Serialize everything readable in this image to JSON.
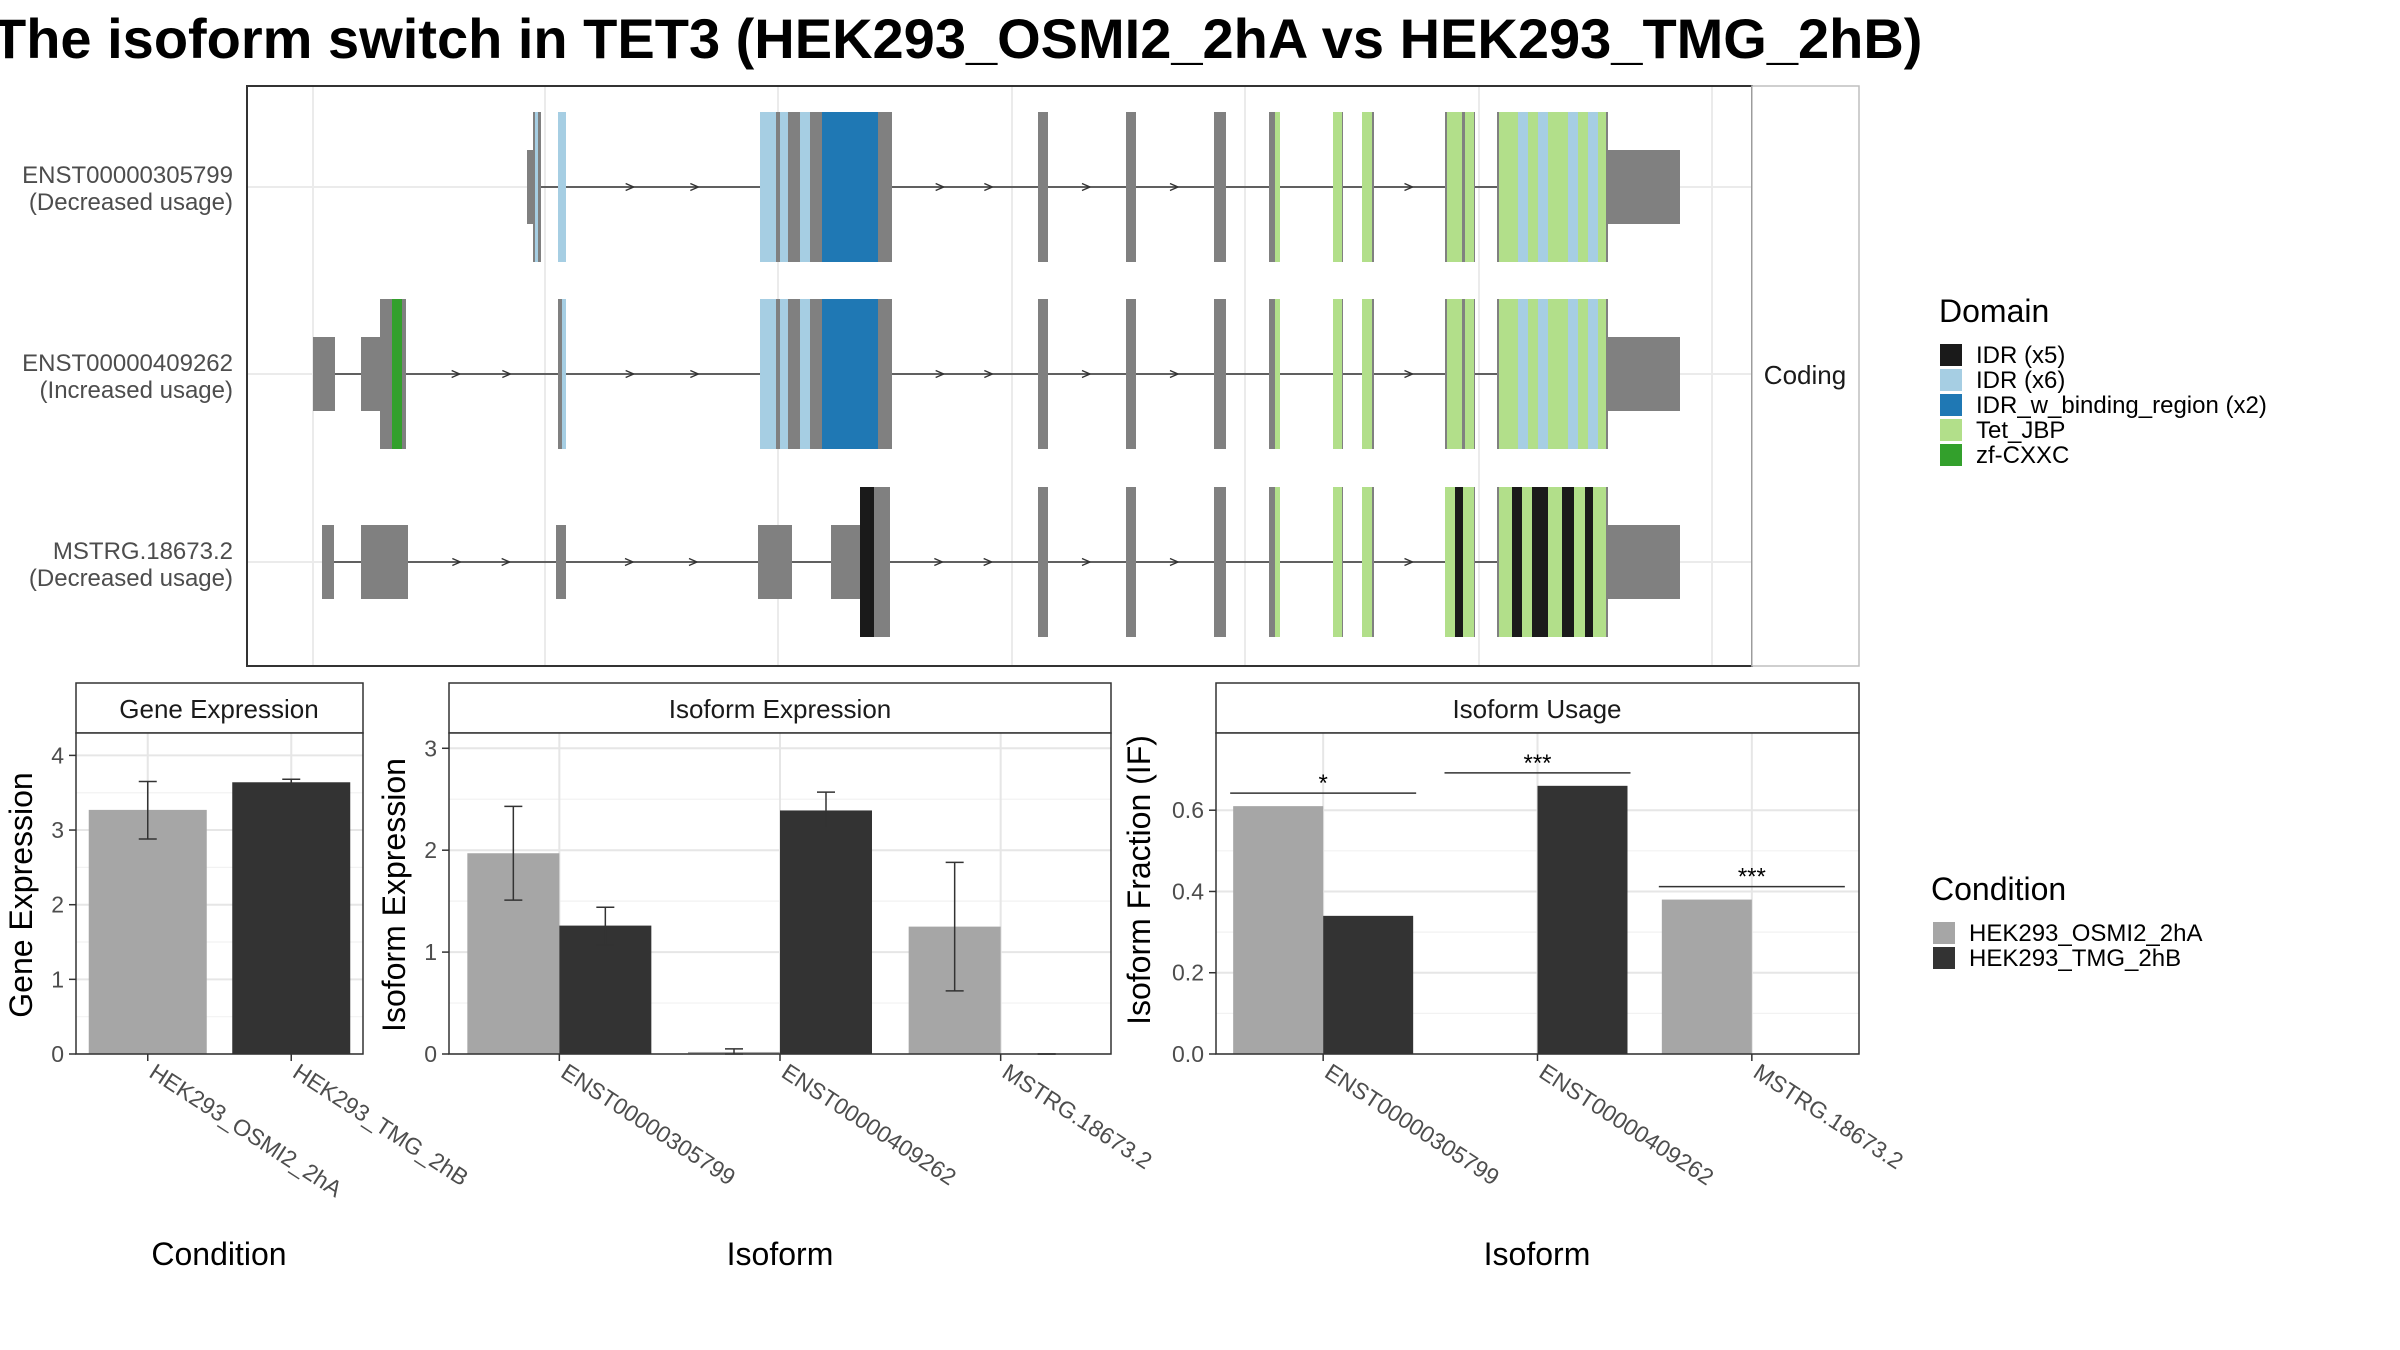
{
  "title": "The isoform switch in TET3 (HEK293_OSMI2_2hA vs HEK293_TMG_2hB)",
  "colors": {
    "OSMI2": "#a6a6a6",
    "TMG": "#333333",
    "exon": "#808080",
    "IDR5": "#1a1a1a",
    "IDR6": "#a6cee3",
    "IDRwb": "#1f78b4",
    "TetJBP": "#b2df8a",
    "zfCXXC": "#33a02c"
  },
  "structure": {
    "facet_label": "Coding",
    "transcripts": [
      {
        "id": "ENST00000305799",
        "usage": "(Decreased usage)"
      },
      {
        "id": "ENST00000409262",
        "usage": "(Increased usage)"
      },
      {
        "id": "MSTRG.18673.2",
        "usage": "(Decreased usage)"
      }
    ]
  },
  "legends": {
    "domain": {
      "title": "Domain",
      "items": [
        {
          "label": "IDR (x5)",
          "color": "#1a1a1a"
        },
        {
          "label": "IDR (x6)",
          "color": "#a6cee3"
        },
        {
          "label": "IDR_w_binding_region (x2)",
          "color": "#1f78b4"
        },
        {
          "label": "Tet_JBP",
          "color": "#b2df8a"
        },
        {
          "label": "zf-CXXC",
          "color": "#33a02c"
        }
      ]
    },
    "condition": {
      "title": "Condition",
      "items": [
        {
          "label": "HEK293_OSMI2_2hA",
          "color": "#a6a6a6"
        },
        {
          "label": "HEK293_TMG_2hB",
          "color": "#333333"
        }
      ]
    }
  },
  "chart_data": [
    {
      "type": "bar",
      "title": "Gene Expression",
      "xlabel": "Condition",
      "ylabel": "Gene Expression",
      "ylim": [
        0,
        4.3
      ],
      "yticks": [
        0,
        1,
        2,
        3,
        4
      ],
      "categories": [
        "HEK293_OSMI2_2hA",
        "HEK293_TMG_2hB"
      ],
      "values": [
        3.27,
        3.64
      ],
      "errors": [
        [
          2.88,
          3.65
        ],
        [
          3.6,
          3.68
        ]
      ]
    },
    {
      "type": "bar",
      "title": "Isoform Expression",
      "xlabel": "Isoform",
      "ylabel": "Isoform Expression",
      "ylim": [
        0,
        3.15
      ],
      "yticks": [
        0,
        1,
        2,
        3
      ],
      "categories": [
        "ENST00000305799",
        "ENST00000409262",
        "MSTRG.18673.2"
      ],
      "series": [
        {
          "name": "HEK293_OSMI2_2hA",
          "values": [
            1.97,
            0.02,
            1.25
          ],
          "errors": [
            [
              1.51,
              2.43
            ],
            [
              0.0,
              0.05
            ],
            [
              0.62,
              1.88
            ]
          ]
        },
        {
          "name": "HEK293_TMG_2hB",
          "values": [
            1.26,
            2.39,
            0.0
          ],
          "errors": [
            [
              1.07,
              1.44
            ],
            [
              2.22,
              2.57
            ],
            [
              0.0,
              0.0
            ]
          ]
        }
      ]
    },
    {
      "type": "bar",
      "title": "Isoform Usage",
      "xlabel": "Isoform",
      "ylabel": "Isoform Fraction (IF)",
      "ylim": [
        0,
        0.79
      ],
      "yticks": [
        0.0,
        0.2,
        0.4,
        0.6
      ],
      "categories": [
        "ENST00000305799",
        "ENST00000409262",
        "MSTRG.18673.2"
      ],
      "series": [
        {
          "name": "HEK293_OSMI2_2hA",
          "values": [
            0.61,
            0.0,
            0.38
          ]
        },
        {
          "name": "HEK293_TMG_2hB",
          "values": [
            0.34,
            0.66,
            0.0
          ]
        }
      ],
      "significance": [
        "*",
        "***",
        "***"
      ]
    }
  ]
}
